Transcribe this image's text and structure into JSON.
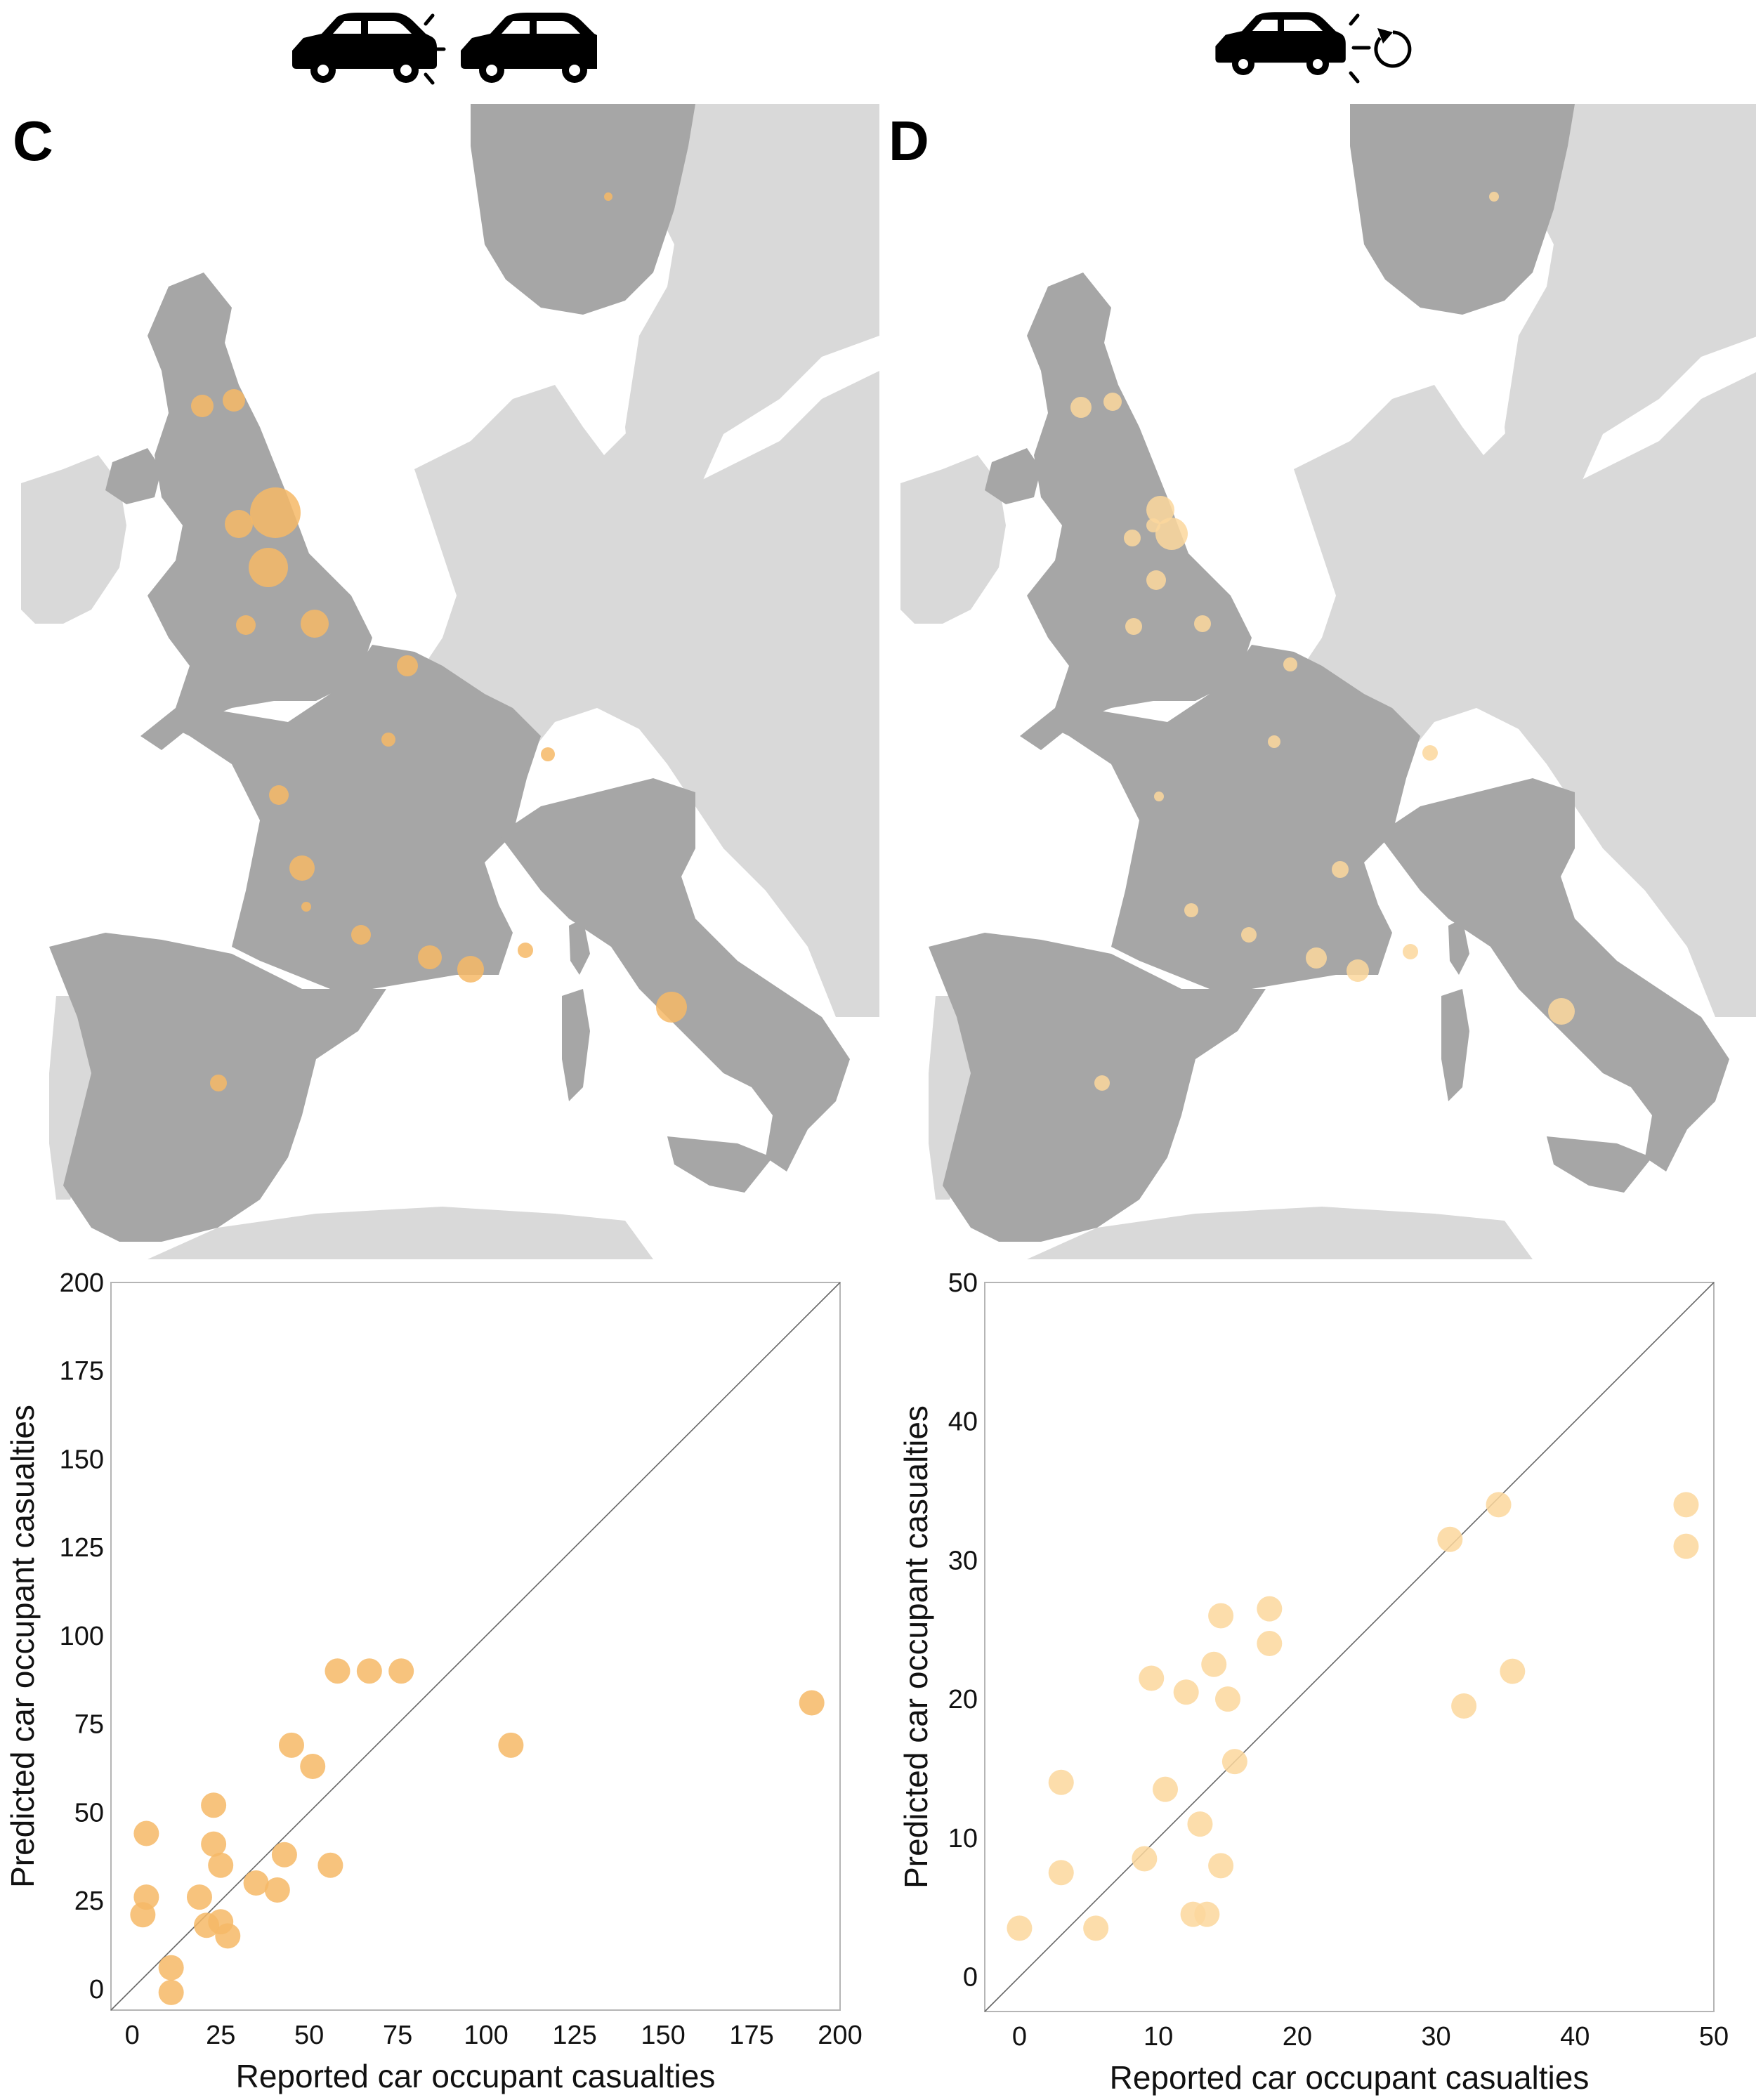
{
  "panels": [
    {
      "letter": "C",
      "icon": "car-rear-end-collision-icon",
      "map": {
        "countries_highlighted": [
          "Norway",
          "United Kingdom",
          "France",
          "Spain",
          "Italy"
        ],
        "bubble_color": "#f6b866",
        "land_color": "#a6a6a6",
        "other_land_color": "#d9d9d9"
      }
    },
    {
      "letter": "D",
      "icon": "car-rollover-icon",
      "map": {
        "countries_highlighted": [
          "Norway",
          "United Kingdom",
          "France",
          "Spain",
          "Italy"
        ],
        "bubble_color": "#fbd79c",
        "land_color": "#a6a6a6",
        "other_land_color": "#d9d9d9"
      }
    }
  ],
  "chart_data": [
    {
      "type": "scatter",
      "xlabel": "Reported car occupant casualties",
      "ylabel": "Predicted car occupant casualties",
      "xlim": [
        -6,
        200
      ],
      "ylim": [
        -6,
        200
      ],
      "xticks": [
        0,
        25,
        50,
        75,
        100,
        125,
        150,
        175,
        200
      ],
      "yticks": [
        0,
        25,
        50,
        75,
        100,
        125,
        150,
        175,
        200
      ],
      "reference_line": "y = x",
      "point_color": "#f6b866",
      "points": [
        [
          192,
          81
        ],
        [
          107,
          69
        ],
        [
          76,
          90
        ],
        [
          67,
          90
        ],
        [
          58,
          90
        ],
        [
          51,
          63
        ],
        [
          56,
          35
        ],
        [
          45,
          69
        ],
        [
          43,
          38
        ],
        [
          41,
          28
        ],
        [
          35,
          30
        ],
        [
          25,
          35
        ],
        [
          23,
          41
        ],
        [
          23,
          52
        ],
        [
          27,
          15
        ],
        [
          25,
          19
        ],
        [
          21,
          18
        ],
        [
          19,
          26
        ],
        [
          11,
          6
        ],
        [
          11,
          -1
        ],
        [
          4,
          44
        ],
        [
          4,
          26
        ],
        [
          3,
          21
        ]
      ]
    },
    {
      "type": "scatter",
      "xlabel": "Reported car occupant casualties",
      "ylabel": "Predicted car occupant casualties",
      "xlim": [
        -2.5,
        50
      ],
      "ylim": [
        -2.5,
        50
      ],
      "xticks": [
        0,
        10,
        20,
        30,
        40,
        50
      ],
      "yticks": [
        0,
        10,
        20,
        30,
        40,
        50
      ],
      "reference_line": "y = x",
      "point_color": "#fbd79c",
      "points": [
        [
          48,
          34
        ],
        [
          48,
          31
        ],
        [
          34.5,
          34
        ],
        [
          31,
          31.5
        ],
        [
          35.5,
          22
        ],
        [
          32,
          19.5
        ],
        [
          18,
          26.5
        ],
        [
          18,
          24
        ],
        [
          14.5,
          26
        ],
        [
          14,
          22.5
        ],
        [
          15,
          20
        ],
        [
          9.5,
          21.5
        ],
        [
          12,
          20.5
        ],
        [
          15.5,
          15.5
        ],
        [
          10.5,
          13.5
        ],
        [
          13,
          11
        ],
        [
          14.5,
          8
        ],
        [
          9,
          8.5
        ],
        [
          12.5,
          4.5
        ],
        [
          13.5,
          4.5
        ],
        [
          3,
          14
        ],
        [
          3,
          7.5
        ],
        [
          5.5,
          3.5
        ],
        [
          0,
          3.5
        ]
      ]
    }
  ]
}
